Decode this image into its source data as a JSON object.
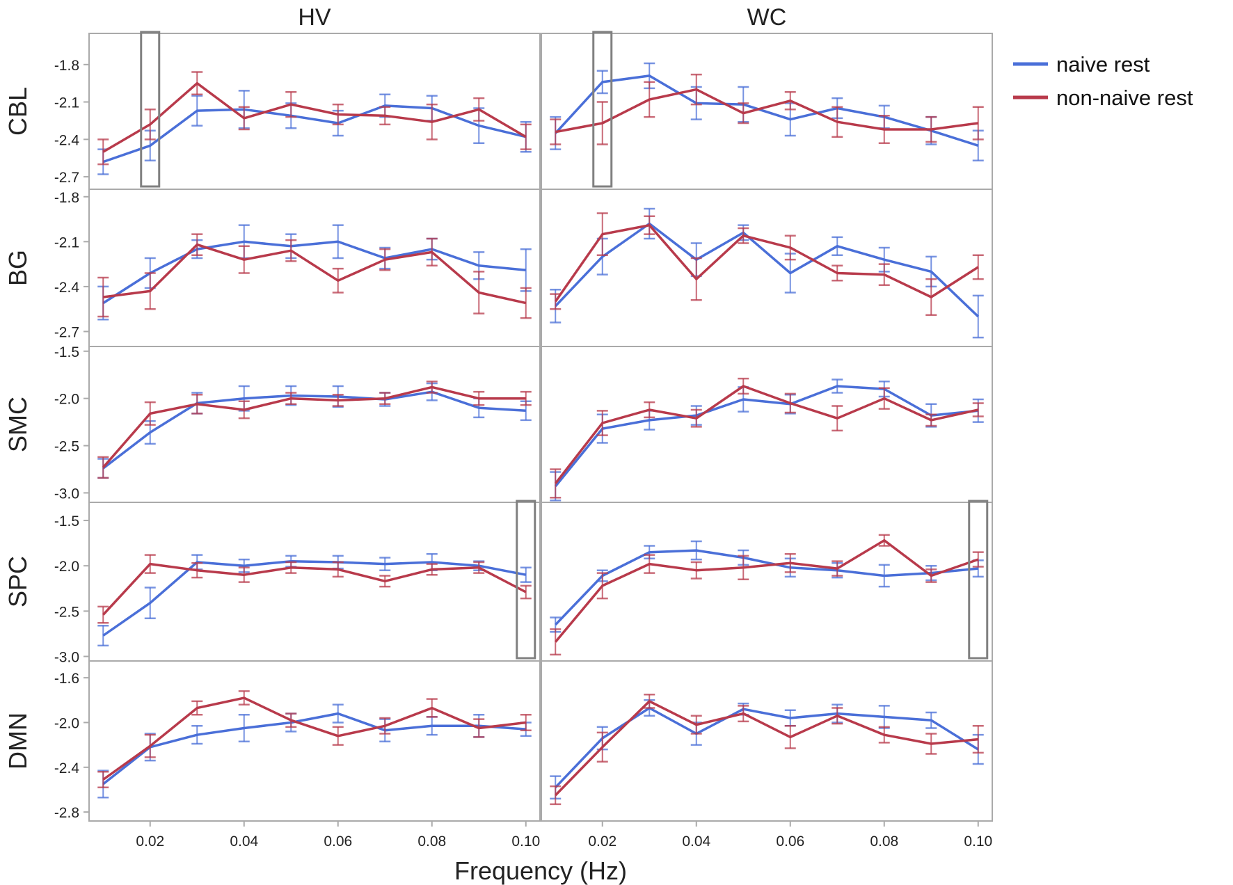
{
  "chart_data": {
    "type": "line",
    "xlabel": "Frequency (Hz)",
    "x": [
      0.01,
      0.02,
      0.03,
      0.04,
      0.05,
      0.06,
      0.07,
      0.08,
      0.09,
      0.1
    ],
    "x_ticks": [
      "0.02",
      "0.04",
      "0.06",
      "0.08",
      "0.10"
    ],
    "column_titles": [
      "HV",
      "WC"
    ],
    "legend": {
      "position": "top-right",
      "entries": [
        {
          "name": "naive rest",
          "color": "#4a6fd8"
        },
        {
          "name": "non-naive rest",
          "color": "#b83a4b"
        }
      ]
    },
    "series_names": [
      "naive rest",
      "non-naive rest"
    ],
    "colors": {
      "naive": "#4a6fd8",
      "nonnaive": "#b83a4b",
      "highlight_box": "#808080",
      "axis": "#aaaaaa"
    },
    "rows": [
      {
        "label": "CBL",
        "ylim": [
          -2.8,
          -1.55
        ],
        "y_ticks": [
          "-1.8",
          "-2.1",
          "-2.4",
          "-2.7"
        ],
        "panels": [
          {
            "naive": [
              -2.58,
              -2.45,
              -2.17,
              -2.16,
              -2.21,
              -2.27,
              -2.13,
              -2.15,
              -2.29,
              -2.38
            ],
            "naive_err": [
              0.1,
              0.12,
              0.12,
              0.15,
              0.1,
              0.1,
              0.09,
              0.1,
              0.14,
              0.12
            ],
            "nonnaive": [
              -2.5,
              -2.28,
              -1.95,
              -2.23,
              -2.12,
              -2.2,
              -2.21,
              -2.26,
              -2.16,
              -2.38
            ],
            "nonnaive_err": [
              0.1,
              0.12,
              0.09,
              0.09,
              0.1,
              0.08,
              0.07,
              0.14,
              0.09,
              0.1
            ],
            "highlight_x": 0.02
          },
          {
            "naive": [
              -2.35,
              -1.94,
              -1.89,
              -2.11,
              -2.12,
              -2.24,
              -2.15,
              -2.22,
              -2.33,
              -2.45
            ],
            "naive_err": [
              0.13,
              0.09,
              0.1,
              0.13,
              0.14,
              0.13,
              0.08,
              0.09,
              0.11,
              0.12
            ],
            "nonnaive": [
              -2.34,
              -2.27,
              -2.08,
              -2.0,
              -2.19,
              -2.09,
              -2.26,
              -2.32,
              -2.32,
              -2.27
            ],
            "nonnaive_err": [
              0.1,
              0.17,
              0.14,
              0.12,
              0.08,
              0.07,
              0.12,
              0.11,
              0.1,
              0.13
            ],
            "highlight_x": 0.02
          }
        ]
      },
      {
        "label": "BG",
        "ylim": [
          -2.8,
          -1.75
        ],
        "y_ticks": [
          "-1.8",
          "-2.1",
          "-2.4",
          "-2.7"
        ],
        "panels": [
          {
            "naive": [
              -2.51,
              -2.31,
              -2.15,
              -2.1,
              -2.13,
              -2.1,
              -2.21,
              -2.15,
              -2.26,
              -2.29
            ],
            "naive_err": [
              0.11,
              0.1,
              0.06,
              0.11,
              0.08,
              0.11,
              0.07,
              0.07,
              0.09,
              0.14
            ],
            "nonnaive": [
              -2.47,
              -2.43,
              -2.12,
              -2.22,
              -2.16,
              -2.36,
              -2.22,
              -2.17,
              -2.44,
              -2.51
            ],
            "nonnaive_err": [
              0.13,
              0.12,
              0.07,
              0.09,
              0.07,
              0.08,
              0.07,
              0.09,
              0.14,
              0.1
            ],
            "highlight_x": null
          },
          {
            "naive": [
              -2.53,
              -2.2,
              -1.98,
              -2.22,
              -2.04,
              -2.31,
              -2.13,
              -2.22,
              -2.3,
              -2.6
            ],
            "naive_err": [
              0.11,
              0.12,
              0.1,
              0.11,
              0.05,
              0.13,
              0.06,
              0.08,
              0.1,
              0.14
            ],
            "nonnaive": [
              -2.5,
              -2.05,
              -1.99,
              -2.35,
              -2.06,
              -2.14,
              -2.31,
              -2.32,
              -2.47,
              -2.27
            ],
            "nonnaive_err": [
              0.05,
              0.14,
              0.06,
              0.14,
              0.05,
              0.08,
              0.05,
              0.07,
              0.12,
              0.08
            ],
            "highlight_x": null
          }
        ]
      },
      {
        "label": "SMC",
        "ylim": [
          -3.1,
          -1.45
        ],
        "y_ticks": [
          "-1.5",
          "-2.0",
          "-2.5",
          "-3.0"
        ],
        "panels": [
          {
            "naive": [
              -2.74,
              -2.36,
              -2.05,
              -2.0,
              -1.97,
              -1.98,
              -2.01,
              -1.93,
              -2.1,
              -2.13
            ],
            "naive_err": [
              0.1,
              0.12,
              0.11,
              0.13,
              0.1,
              0.11,
              0.07,
              0.09,
              0.1,
              0.1
            ],
            "nonnaive": [
              -2.73,
              -2.16,
              -2.06,
              -2.12,
              -2.0,
              -2.02,
              -2.0,
              -1.88,
              -2.0,
              -2.0
            ],
            "nonnaive_err": [
              0.11,
              0.12,
              0.1,
              0.09,
              0.06,
              0.06,
              0.06,
              0.06,
              0.07,
              0.07
            ],
            "highlight_x": null
          },
          {
            "naive": [
              -2.93,
              -2.32,
              -2.23,
              -2.18,
              -2.01,
              -2.06,
              -1.87,
              -1.9,
              -2.18,
              -2.13
            ],
            "naive_err": [
              0.15,
              0.15,
              0.1,
              0.1,
              0.13,
              0.1,
              0.07,
              0.08,
              0.12,
              0.12
            ],
            "nonnaive": [
              -2.9,
              -2.26,
              -2.12,
              -2.21,
              -1.87,
              -2.05,
              -2.21,
              -2.0,
              -2.23,
              -2.12
            ],
            "nonnaive_err": [
              0.15,
              0.13,
              0.08,
              0.09,
              0.08,
              0.1,
              0.13,
              0.11,
              0.06,
              0.07
            ],
            "highlight_x": null
          }
        ]
      },
      {
        "label": "SPC",
        "ylim": [
          -3.05,
          -1.3
        ],
        "y_ticks": [
          "-1.5",
          "-2.0",
          "-2.5",
          "-3.0"
        ],
        "panels": [
          {
            "naive": [
              -2.77,
              -2.41,
              -1.96,
              -2.0,
              -1.95,
              -1.96,
              -1.98,
              -1.96,
              -2.0,
              -2.1
            ],
            "naive_err": [
              0.11,
              0.17,
              0.08,
              0.07,
              0.06,
              0.07,
              0.07,
              0.09,
              0.05,
              0.08
            ],
            "nonnaive": [
              -2.54,
              -1.98,
              -2.05,
              -2.1,
              -2.02,
              -2.04,
              -2.17,
              -2.04,
              -2.02,
              -2.29
            ],
            "nonnaive_err": [
              0.09,
              0.1,
              0.08,
              0.08,
              0.06,
              0.08,
              0.06,
              0.06,
              0.06,
              0.07
            ],
            "highlight_x": 0.1
          },
          {
            "naive": [
              -2.65,
              -2.11,
              -1.85,
              -1.83,
              -1.91,
              -2.02,
              -2.05,
              -2.11,
              -2.08,
              -2.03
            ],
            "naive_err": [
              0.08,
              0.06,
              0.07,
              0.1,
              0.08,
              0.1,
              0.08,
              0.12,
              0.08,
              0.09
            ],
            "nonnaive": [
              -2.84,
              -2.22,
              -1.98,
              -2.05,
              -2.02,
              -1.97,
              -2.03,
              -1.72,
              -2.11,
              -1.93
            ],
            "nonnaive_err": [
              0.14,
              0.14,
              0.1,
              0.09,
              0.13,
              0.1,
              0.08,
              0.06,
              0.07,
              0.08
            ],
            "highlight_x": 0.1
          }
        ]
      },
      {
        "label": "DMN",
        "ylim": [
          -2.88,
          -1.45
        ],
        "y_ticks": [
          "-1.6",
          "-2.0",
          "-2.4",
          "-2.8"
        ],
        "panels": [
          {
            "naive": [
              -2.55,
              -2.22,
              -2.11,
              -2.05,
              -2.0,
              -1.92,
              -2.07,
              -2.03,
              -2.03,
              -2.06
            ],
            "naive_err": [
              0.12,
              0.12,
              0.08,
              0.12,
              0.08,
              0.08,
              0.1,
              0.08,
              0.1,
              0.06
            ],
            "nonnaive": [
              -2.51,
              -2.21,
              -1.87,
              -1.78,
              -1.98,
              -2.12,
              -2.03,
              -1.87,
              -2.05,
              -2.0
            ],
            "nonnaive_err": [
              0.07,
              0.1,
              0.06,
              0.06,
              0.06,
              0.08,
              0.07,
              0.08,
              0.08,
              0.07
            ],
            "highlight_x": null
          },
          {
            "naive": [
              -2.58,
              -2.14,
              -1.87,
              -2.1,
              -1.88,
              -1.96,
              -1.92,
              -1.95,
              -1.98,
              -2.24
            ],
            "naive_err": [
              0.1,
              0.1,
              0.07,
              0.1,
              0.05,
              0.07,
              0.08,
              0.1,
              0.07,
              0.13
            ],
            "nonnaive": [
              -2.65,
              -2.22,
              -1.81,
              -2.02,
              -1.92,
              -2.13,
              -1.94,
              -2.11,
              -2.19,
              -2.15
            ],
            "nonnaive_err": [
              0.08,
              0.13,
              0.06,
              0.08,
              0.07,
              0.1,
              0.07,
              0.07,
              0.09,
              0.12
            ],
            "highlight_x": null
          }
        ]
      }
    ]
  }
}
